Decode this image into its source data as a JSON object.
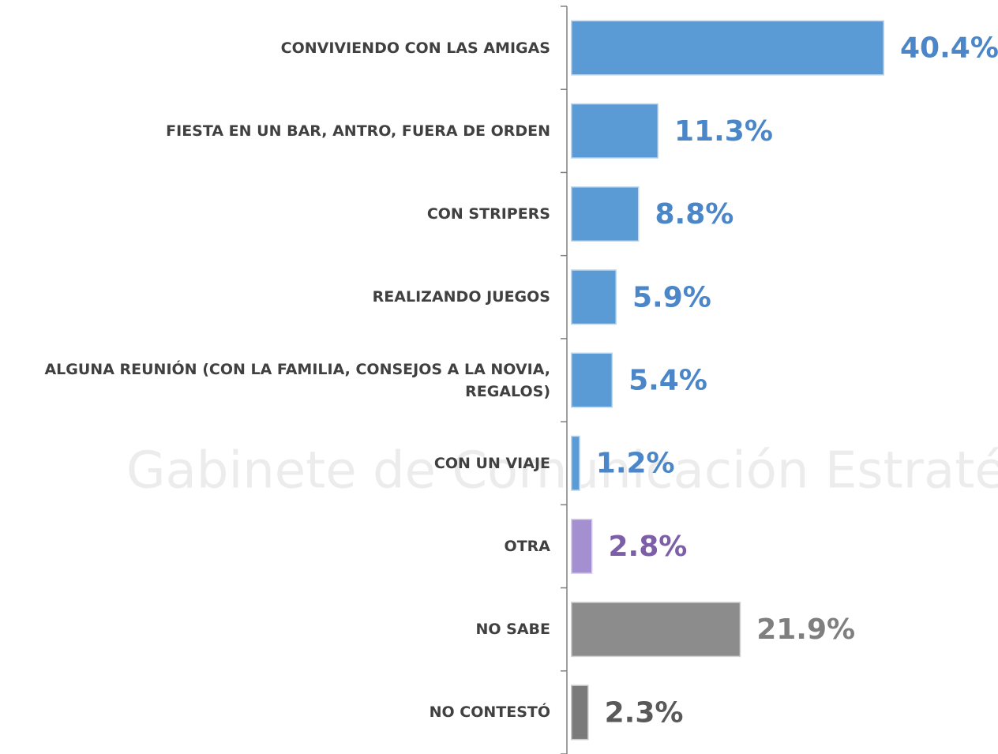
{
  "watermark": "Gabinete de Comunicación Estratégica",
  "chart_data": {
    "type": "bar",
    "orientation": "horizontal",
    "categories": [
      "CONVIVIENDO CON LAS AMIGAS",
      "FIESTA EN UN BAR, ANTRO, FUERA DE ORDEN",
      "CON STRIPERS",
      "REALIZANDO JUEGOS",
      "ALGUNA REUNIÓN (CON LA FAMILIA, CONSEJOS A LA NOVIA, REGALOS)",
      "CON UN VIAJE",
      "OTRA",
      "NO SABE",
      "NO CONTESTÓ"
    ],
    "values": [
      40.4,
      11.3,
      8.8,
      5.9,
      5.4,
      1.2,
      2.8,
      21.9,
      2.3
    ],
    "value_labels": [
      "40.4%",
      "11.3%",
      "8.8%",
      "5.9%",
      "5.4%",
      "1.2%",
      "2.8%",
      "21.9%",
      "2.3%"
    ],
    "colors": [
      "#5b9bd5",
      "#5b9bd5",
      "#5b9bd5",
      "#5b9bd5",
      "#5b9bd5",
      "#5b9bd5",
      "#a48fd0",
      "#8c8c8c",
      "#7a7a7a"
    ],
    "label_colors": [
      "#4a86c8",
      "#4a86c8",
      "#4a86c8",
      "#4a86c8",
      "#4a86c8",
      "#4a86c8",
      "#7d5ea8",
      "#7f7f7f",
      "#595959"
    ]
  }
}
